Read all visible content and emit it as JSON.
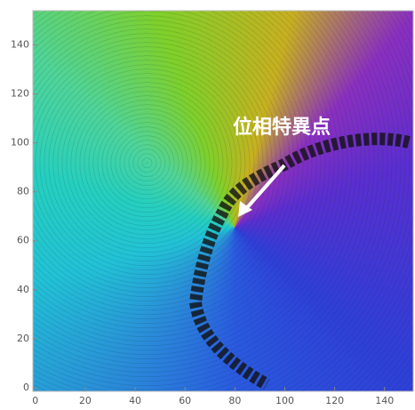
{
  "chart_data": {
    "type": "density",
    "annotation": "位相特異点",
    "xlim": [
      -1,
      151.5
    ],
    "ylim": [
      -1.5,
      154
    ],
    "xticks": [
      0,
      20,
      40,
      60,
      80,
      100,
      120,
      140
    ],
    "yticks": [
      0,
      20,
      40,
      60,
      80,
      100,
      120,
      140
    ]
  }
}
